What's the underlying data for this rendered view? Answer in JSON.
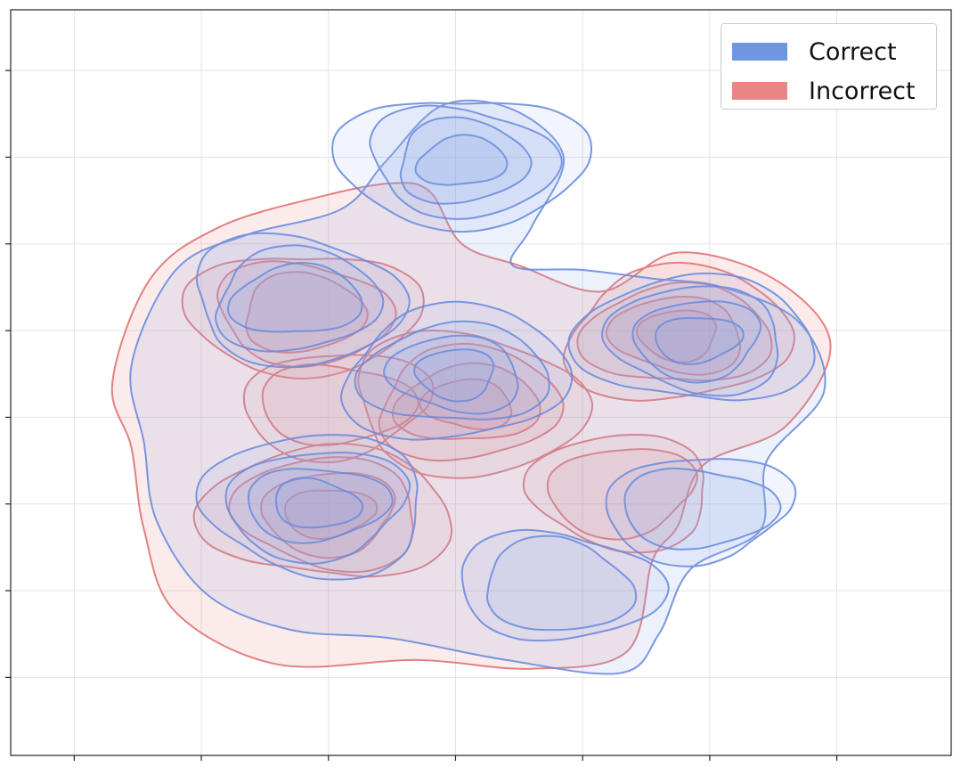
{
  "chart_data": {
    "type": "kde_contour",
    "title": "",
    "xlabel": "",
    "ylabel": "",
    "tick_labels_visible": false,
    "grid": true,
    "legend_position": "top-right",
    "x_ticks": [
      -3,
      -2,
      -1,
      0,
      1,
      2,
      3
    ],
    "y_ticks": [
      -3,
      -2,
      -1,
      0,
      1,
      2,
      3,
      4
    ],
    "xlim": [
      -3.5,
      3.9
    ],
    "ylim": [
      -3.9,
      4.7
    ],
    "series": [
      {
        "name": "Correct",
        "color": "#6f96e0",
        "modes": [
          {
            "x": 0.05,
            "y": 2.95,
            "strength": 1.0,
            "label": "top-center peak"
          },
          {
            "x": -1.25,
            "y": 1.35,
            "strength": 0.8,
            "label": "upper-left peak"
          },
          {
            "x": 0.0,
            "y": 0.5,
            "strength": 0.9,
            "label": "center peak"
          },
          {
            "x": 1.9,
            "y": 0.9,
            "strength": 0.9,
            "label": "right peak"
          },
          {
            "x": -1.1,
            "y": -1.0,
            "strength": 0.95,
            "label": "lower-left peak"
          },
          {
            "x": 1.9,
            "y": -1.05,
            "strength": 0.5,
            "label": "lower-right small peak"
          },
          {
            "x": 0.8,
            "y": -1.95,
            "strength": 0.6,
            "label": "bottom peak"
          }
        ]
      },
      {
        "name": "Incorrect",
        "color": "#e88686",
        "modes": [
          {
            "x": -1.2,
            "y": 1.2,
            "strength": 0.85,
            "label": "upper-left peak"
          },
          {
            "x": 0.1,
            "y": 0.15,
            "strength": 1.0,
            "label": "center peak"
          },
          {
            "x": 1.75,
            "y": 0.95,
            "strength": 0.9,
            "label": "right peak"
          },
          {
            "x": -1.0,
            "y": -1.1,
            "strength": 1.0,
            "label": "lower-left peak"
          },
          {
            "x": 1.3,
            "y": -0.85,
            "strength": 0.55,
            "label": "lower-right bump"
          },
          {
            "x": -0.95,
            "y": 0.15,
            "strength": 0.5,
            "label": "small isolated peak"
          }
        ]
      }
    ]
  },
  "legend": {
    "items": [
      {
        "label": "Correct",
        "color": "#6f96e0"
      },
      {
        "label": "Incorrect",
        "color": "#e88686"
      }
    ]
  }
}
